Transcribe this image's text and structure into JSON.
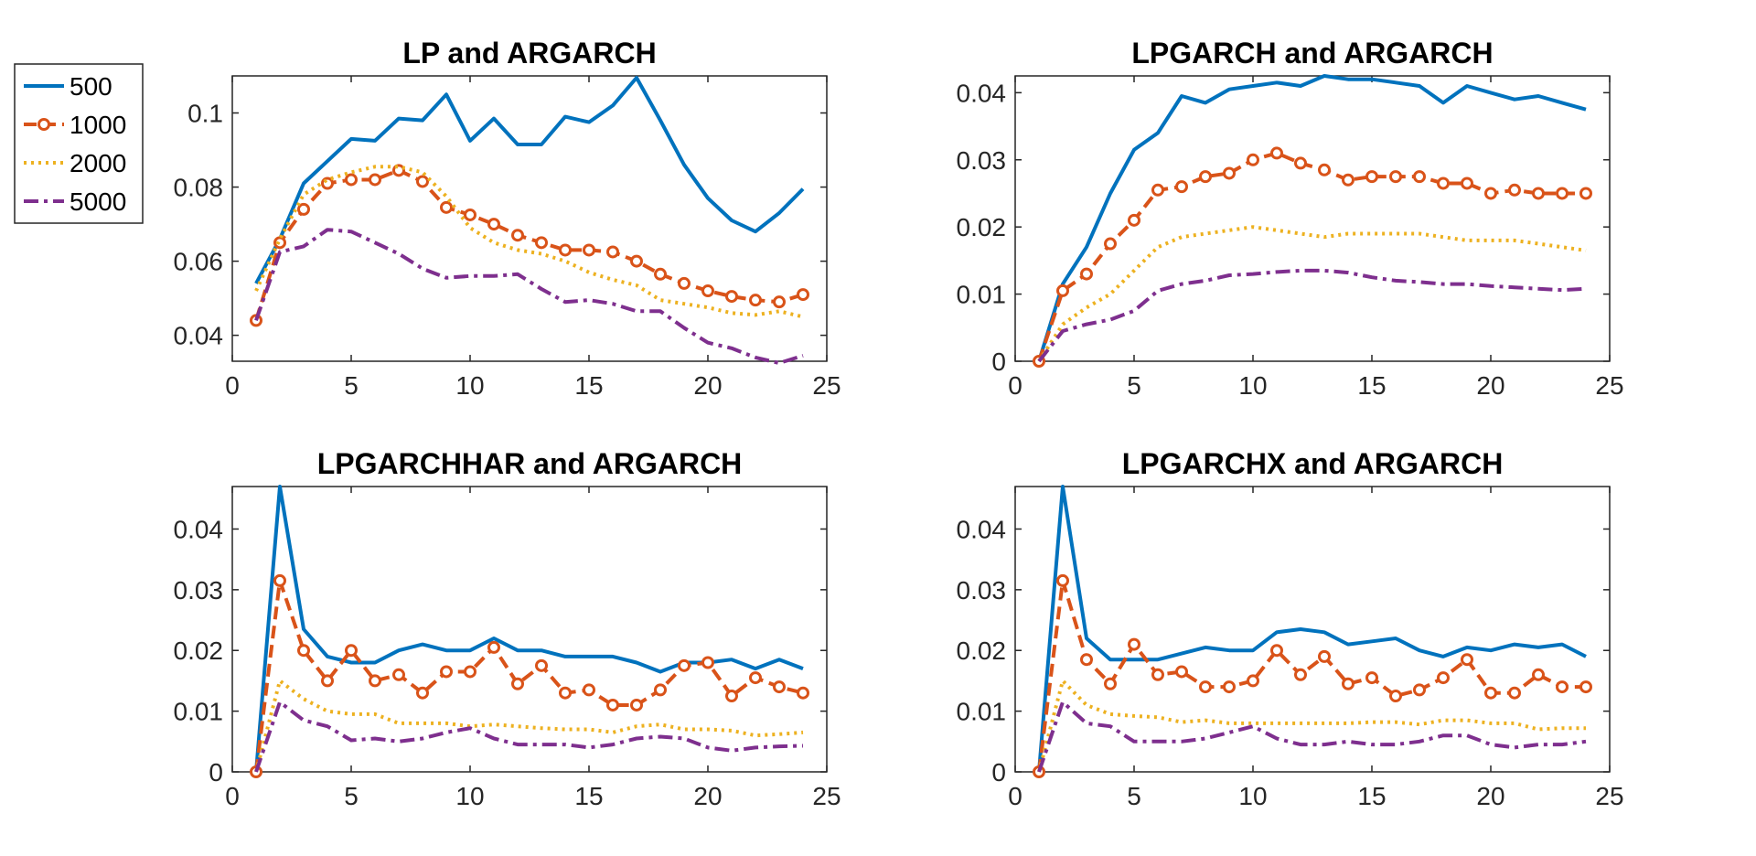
{
  "legend": {
    "entries": [
      {
        "label": "500",
        "color": "#0072BD",
        "style": "solid"
      },
      {
        "label": "1000",
        "color": "#D95319",
        "style": "dashed-circle"
      },
      {
        "label": "2000",
        "color": "#EDB120",
        "style": "dotted"
      },
      {
        "label": "5000",
        "color": "#7E2F8E",
        "style": "dashdot"
      }
    ]
  },
  "chart_data": [
    {
      "type": "line",
      "title": "LP and ARGARCH",
      "xlim": [
        0,
        25
      ],
      "ylim": [
        0.033,
        0.11
      ],
      "xticks": [
        0,
        5,
        10,
        15,
        20,
        25
      ],
      "yticks": [
        0.04,
        0.06,
        0.08,
        0.1
      ],
      "ytick_labels": [
        "0.04",
        "0.06",
        "0.08",
        "0.1"
      ],
      "x": [
        1,
        2,
        3,
        4,
        5,
        6,
        7,
        8,
        9,
        10,
        11,
        12,
        13,
        14,
        15,
        16,
        17,
        18,
        19,
        20,
        21,
        22,
        23,
        24
      ],
      "series": [
        {
          "name": "500",
          "values": [
            0.054,
            0.066,
            0.081,
            0.087,
            0.093,
            0.0925,
            0.0985,
            0.098,
            0.105,
            0.0925,
            0.0985,
            0.0915,
            0.0915,
            0.099,
            0.0975,
            0.102,
            0.1095,
            0.098,
            0.086,
            0.077,
            0.071,
            0.068,
            0.073,
            0.0795
          ]
        },
        {
          "name": "1000",
          "values": [
            0.044,
            0.065,
            0.074,
            0.081,
            0.082,
            0.082,
            0.0845,
            0.0815,
            0.0745,
            0.0725,
            0.07,
            0.067,
            0.065,
            0.063,
            0.063,
            0.0625,
            0.06,
            0.0565,
            0.054,
            0.052,
            0.0505,
            0.0495,
            0.049,
            0.051
          ]
        },
        {
          "name": "2000",
          "values": [
            0.052,
            0.066,
            0.078,
            0.082,
            0.084,
            0.0855,
            0.0855,
            0.084,
            0.0775,
            0.069,
            0.065,
            0.063,
            0.062,
            0.06,
            0.057,
            0.055,
            0.0535,
            0.0495,
            0.0485,
            0.0475,
            0.046,
            0.0455,
            0.0465,
            0.045
          ]
        },
        {
          "name": "5000",
          "values": [
            0.044,
            0.0625,
            0.064,
            0.0685,
            0.068,
            0.065,
            0.062,
            0.058,
            0.0555,
            0.056,
            0.056,
            0.0565,
            0.0525,
            0.049,
            0.0495,
            0.0485,
            0.0465,
            0.0465,
            0.042,
            0.038,
            0.0365,
            0.034,
            0.0325,
            0.0345
          ]
        }
      ]
    },
    {
      "type": "line",
      "title": "LPGARCH and ARGARCH",
      "xlim": [
        0,
        25
      ],
      "ylim": [
        0,
        0.0425
      ],
      "xticks": [
        0,
        5,
        10,
        15,
        20,
        25
      ],
      "yticks": [
        0,
        0.01,
        0.02,
        0.03,
        0.04
      ],
      "ytick_labels": [
        "0",
        "0.01",
        "0.02",
        "0.03",
        "0.04"
      ],
      "x": [
        1,
        2,
        3,
        4,
        5,
        6,
        7,
        8,
        9,
        10,
        11,
        12,
        13,
        14,
        15,
        16,
        17,
        18,
        19,
        20,
        21,
        22,
        23,
        24
      ],
      "series": [
        {
          "name": "500",
          "values": [
            0,
            0.0115,
            0.017,
            0.025,
            0.0315,
            0.034,
            0.0395,
            0.0385,
            0.0405,
            0.041,
            0.0415,
            0.041,
            0.0425,
            0.042,
            0.042,
            0.0415,
            0.041,
            0.0385,
            0.041,
            0.04,
            0.039,
            0.0395,
            0.0385,
            0.0375
          ]
        },
        {
          "name": "1000",
          "values": [
            0,
            0.0105,
            0.013,
            0.0175,
            0.021,
            0.0255,
            0.026,
            0.0275,
            0.028,
            0.03,
            0.031,
            0.0295,
            0.0285,
            0.027,
            0.0275,
            0.0275,
            0.0275,
            0.0265,
            0.0265,
            0.025,
            0.0255,
            0.025,
            0.025,
            0.025
          ]
        },
        {
          "name": "2000",
          "values": [
            0,
            0.0055,
            0.008,
            0.01,
            0.0135,
            0.017,
            0.0185,
            0.019,
            0.0195,
            0.02,
            0.0195,
            0.019,
            0.0185,
            0.019,
            0.019,
            0.019,
            0.019,
            0.0185,
            0.018,
            0.018,
            0.018,
            0.0175,
            0.017,
            0.0165
          ]
        },
        {
          "name": "5000",
          "values": [
            0,
            0.0045,
            0.0055,
            0.0062,
            0.0075,
            0.0105,
            0.0115,
            0.012,
            0.0128,
            0.013,
            0.0133,
            0.0135,
            0.0135,
            0.0132,
            0.0125,
            0.012,
            0.0118,
            0.0115,
            0.0115,
            0.0112,
            0.011,
            0.0108,
            0.0106,
            0.0108
          ]
        }
      ]
    },
    {
      "type": "line",
      "title": "LPGARCHHAR and ARGARCH",
      "xlim": [
        0,
        25
      ],
      "ylim": [
        0,
        0.047
      ],
      "xticks": [
        0,
        5,
        10,
        15,
        20,
        25
      ],
      "yticks": [
        0,
        0.01,
        0.02,
        0.03,
        0.04
      ],
      "ytick_labels": [
        "0",
        "0.01",
        "0.02",
        "0.03",
        "0.04"
      ],
      "x": [
        1,
        2,
        3,
        4,
        5,
        6,
        7,
        8,
        9,
        10,
        11,
        12,
        13,
        14,
        15,
        16,
        17,
        18,
        19,
        20,
        21,
        22,
        23,
        24
      ],
      "series": [
        {
          "name": "500",
          "values": [
            0,
            0.047,
            0.0235,
            0.019,
            0.018,
            0.018,
            0.02,
            0.021,
            0.02,
            0.02,
            0.022,
            0.02,
            0.02,
            0.019,
            0.019,
            0.019,
            0.018,
            0.0165,
            0.018,
            0.018,
            0.0185,
            0.017,
            0.0185,
            0.017
          ]
        },
        {
          "name": "1000",
          "values": [
            0,
            0.0315,
            0.02,
            0.015,
            0.02,
            0.015,
            0.016,
            0.013,
            0.0165,
            0.0165,
            0.0205,
            0.0145,
            0.0175,
            0.013,
            0.0135,
            0.011,
            0.011,
            0.0135,
            0.0175,
            0.018,
            0.0125,
            0.0155,
            0.014,
            0.013
          ]
        },
        {
          "name": "2000",
          "values": [
            0,
            0.015,
            0.012,
            0.01,
            0.0095,
            0.0095,
            0.008,
            0.008,
            0.008,
            0.0075,
            0.0078,
            0.0075,
            0.0072,
            0.007,
            0.007,
            0.0065,
            0.0075,
            0.0078,
            0.007,
            0.007,
            0.0068,
            0.006,
            0.0062,
            0.0065
          ]
        },
        {
          "name": "5000",
          "values": [
            0,
            0.0115,
            0.0085,
            0.0075,
            0.0052,
            0.0055,
            0.005,
            0.0055,
            0.0065,
            0.0072,
            0.0055,
            0.0045,
            0.0045,
            0.0045,
            0.004,
            0.0045,
            0.0055,
            0.0058,
            0.0055,
            0.004,
            0.0035,
            0.004,
            0.0042,
            0.0043
          ]
        }
      ]
    },
    {
      "type": "line",
      "title": "LPGARCHX and ARGARCH",
      "xlim": [
        0,
        25
      ],
      "ylim": [
        0,
        0.047
      ],
      "xticks": [
        0,
        5,
        10,
        15,
        20,
        25
      ],
      "yticks": [
        0,
        0.01,
        0.02,
        0.03,
        0.04
      ],
      "ytick_labels": [
        "0",
        "0.01",
        "0.02",
        "0.03",
        "0.04"
      ],
      "x": [
        1,
        2,
        3,
        4,
        5,
        6,
        7,
        8,
        9,
        10,
        11,
        12,
        13,
        14,
        15,
        16,
        17,
        18,
        19,
        20,
        21,
        22,
        23,
        24
      ],
      "series": [
        {
          "name": "500",
          "values": [
            0,
            0.047,
            0.022,
            0.0185,
            0.0185,
            0.0185,
            0.0195,
            0.0205,
            0.02,
            0.02,
            0.023,
            0.0235,
            0.023,
            0.021,
            0.0215,
            0.022,
            0.02,
            0.019,
            0.0205,
            0.02,
            0.021,
            0.0205,
            0.021,
            0.019
          ]
        },
        {
          "name": "1000",
          "values": [
            0,
            0.0315,
            0.0185,
            0.0145,
            0.021,
            0.016,
            0.0165,
            0.014,
            0.014,
            0.015,
            0.02,
            0.016,
            0.019,
            0.0145,
            0.0155,
            0.0125,
            0.0135,
            0.0155,
            0.0185,
            0.013,
            0.013,
            0.016,
            0.014,
            0.014
          ]
        },
        {
          "name": "2000",
          "values": [
            0,
            0.015,
            0.011,
            0.0095,
            0.0092,
            0.009,
            0.0082,
            0.0085,
            0.008,
            0.008,
            0.008,
            0.008,
            0.008,
            0.008,
            0.0082,
            0.0082,
            0.0078,
            0.0085,
            0.0085,
            0.008,
            0.008,
            0.007,
            0.0072,
            0.0072
          ]
        },
        {
          "name": "5000",
          "values": [
            0,
            0.0115,
            0.008,
            0.0075,
            0.005,
            0.005,
            0.005,
            0.0055,
            0.0065,
            0.0075,
            0.0055,
            0.0045,
            0.0045,
            0.005,
            0.0045,
            0.0045,
            0.005,
            0.006,
            0.006,
            0.0045,
            0.004,
            0.0045,
            0.0045,
            0.005
          ]
        }
      ]
    }
  ]
}
